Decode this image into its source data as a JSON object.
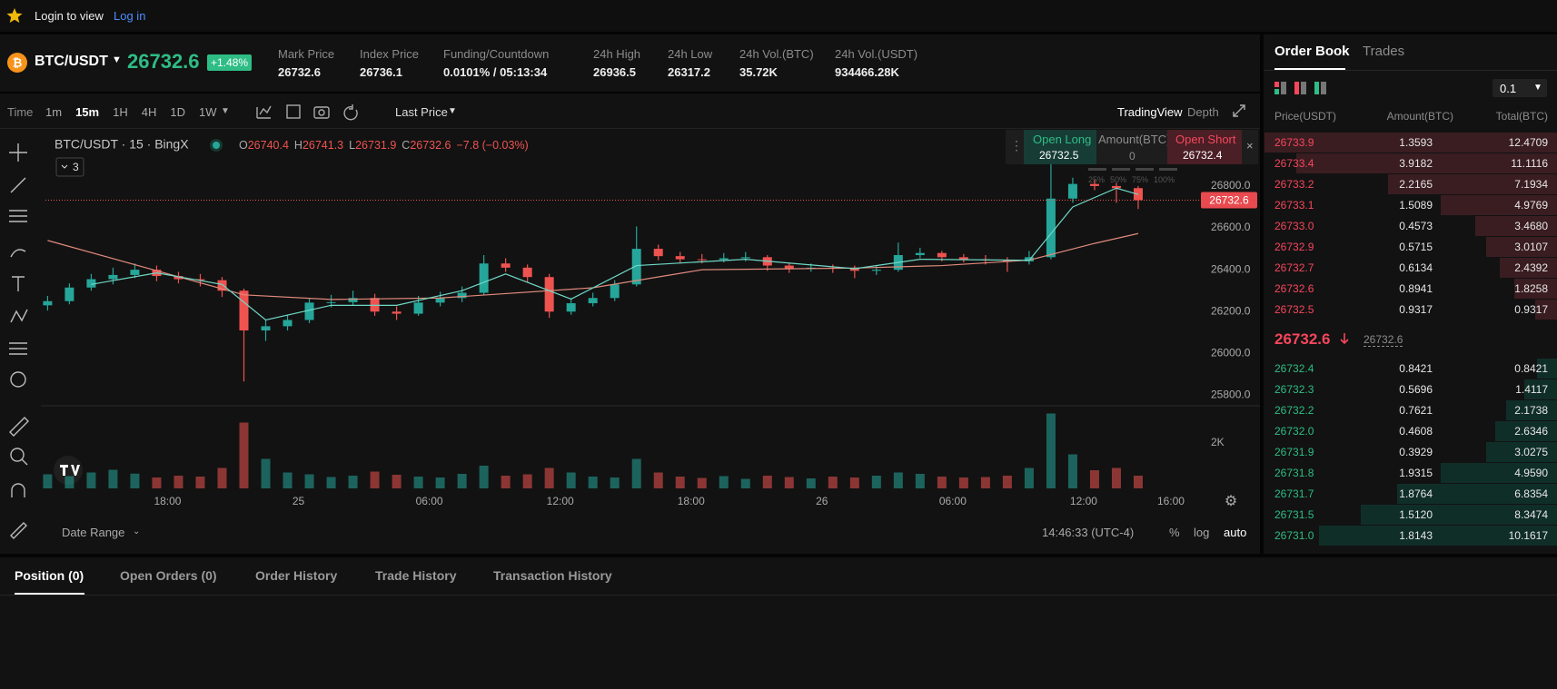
{
  "topbar": {
    "login_text": "Login to view",
    "login_link": "Log in"
  },
  "header": {
    "pair": "BTC/USDT",
    "price": "26732.6",
    "change": "+1.48%",
    "stats": [
      {
        "label": "Mark Price",
        "value": "26732.6"
      },
      {
        "label": "Index Price",
        "value": "26736.1"
      },
      {
        "label": "Funding/Countdown",
        "value": "0.0101% / 05:13:34"
      },
      {
        "label": "24h High",
        "value": "26936.5"
      },
      {
        "label": "24h Low",
        "value": "26317.2"
      },
      {
        "label": "24h Vol.(BTC)",
        "value": "35.72K"
      },
      {
        "label": "24h Vol.(USDT)",
        "value": "934466.28K"
      }
    ]
  },
  "toolbar": {
    "time_label": "Time",
    "intervals": [
      "1m",
      "15m",
      "1H",
      "4H",
      "1D",
      "1W"
    ],
    "active_interval": "15m",
    "price_type": "Last Price",
    "views": [
      "TradingView",
      "Depth"
    ],
    "active_view": "TradingView"
  },
  "chart_data": {
    "type": "candlestick",
    "symbol": "BTC/USDT · 15 · BingX",
    "legend": [
      {
        "label": "O",
        "value": "26740.4"
      },
      {
        "label": "H",
        "value": "26741.3"
      },
      {
        "label": "L",
        "value": "26731.9"
      },
      {
        "label": "C",
        "value": "26732.6"
      }
    ],
    "change": "−7.8 (−0.03%)",
    "indicator_count": "3",
    "up_color": "#26a69a",
    "down_color": "#ef5350",
    "x": [
      12.5,
      13.5,
      14.5,
      15.5,
      16.5,
      17.5,
      18.5,
      19.5,
      20.5,
      21.5,
      22.5,
      23.5,
      24.5,
      25.5,
      26.5,
      27.5,
      28.5,
      29.5,
      30.5,
      31.5,
      32.5,
      33.5,
      34.5,
      35.5,
      36.5,
      37.5,
      38.5,
      39.5,
      40.5,
      41.5,
      42.5,
      43.5,
      44.5,
      45.5,
      46.5,
      47.5,
      48.5,
      49.5,
      50.5,
      51.5,
      52.5,
      53.5,
      54.5,
      55.5,
      56.5,
      57.5,
      58.5,
      59.5,
      60.5,
      61.5,
      62.5
    ],
    "open": [
      26230,
      26250,
      26315,
      26355,
      26375,
      26400,
      26370,
      26355,
      26350,
      26300,
      26110,
      26130,
      26160,
      26243,
      26245,
      26265,
      26200,
      26190,
      26243,
      26265,
      26290,
      26430,
      26410,
      26365,
      26200,
      26240,
      26265,
      26330,
      26500,
      26465,
      26450,
      26448,
      26455,
      26460,
      26420,
      26405,
      26410,
      26405,
      26395,
      26400,
      26470,
      26480,
      26460,
      26450,
      26445,
      26440,
      26460,
      26740,
      26810,
      26800,
      26790
    ],
    "high": [
      26275,
      26335,
      26380,
      26410,
      26430,
      26420,
      26390,
      26380,
      26365,
      26310,
      26160,
      26185,
      26265,
      26280,
      26300,
      26285,
      26225,
      26275,
      26295,
      26320,
      26470,
      26455,
      26425,
      26380,
      26265,
      26290,
      26350,
      26607,
      26520,
      26485,
      26475,
      26480,
      26485,
      26470,
      26435,
      26430,
      26425,
      26420,
      26420,
      26530,
      26505,
      26490,
      26475,
      26470,
      26460,
      26490,
      26904,
      26840,
      26830,
      26815,
      26800
    ],
    "low": [
      26205,
      26235,
      26300,
      26330,
      26360,
      26345,
      26335,
      26320,
      26270,
      25866,
      26060,
      26110,
      26145,
      26220,
      26230,
      26180,
      26160,
      26180,
      26225,
      26245,
      26280,
      26390,
      26340,
      26170,
      26185,
      26225,
      26250,
      26320,
      26445,
      26430,
      26430,
      26435,
      26440,
      26395,
      26385,
      26390,
      26385,
      26360,
      26375,
      26390,
      26455,
      26440,
      26435,
      26425,
      26390,
      26425,
      26450,
      26720,
      26780,
      26720,
      26690
    ],
    "close": [
      26250,
      26315,
      26355,
      26375,
      26400,
      26370,
      26355,
      26350,
      26300,
      26110,
      26130,
      26160,
      26243,
      26245,
      26265,
      26200,
      26190,
      26243,
      26265,
      26290,
      26430,
      26410,
      26365,
      26200,
      26240,
      26265,
      26330,
      26500,
      26465,
      26450,
      26448,
      26455,
      26460,
      26420,
      26405,
      26410,
      26405,
      26395,
      26400,
      26470,
      26480,
      26460,
      26450,
      26445,
      26440,
      26460,
      26740,
      26810,
      26800,
      26790,
      26732.6
    ],
    "xlim": [
      12.4,
      65.5
    ],
    "xticks": [
      {
        "value": 18,
        "label": "18:00"
      },
      {
        "value": 24,
        "label": "25"
      },
      {
        "value": 30,
        "label": "06:00"
      },
      {
        "value": 36,
        "label": "12:00"
      },
      {
        "value": 42,
        "label": "18:00"
      },
      {
        "value": 48,
        "label": "26"
      },
      {
        "value": 54,
        "label": "06:00"
      },
      {
        "value": 60,
        "label": "12:00"
      },
      {
        "value": 64,
        "label": "16:00"
      }
    ],
    "ylim": [
      25750,
      27060
    ],
    "yticks": [
      {
        "value": 25800,
        "label": "25800.0"
      },
      {
        "value": 26000,
        "label": "26000.0"
      },
      {
        "value": 26200,
        "label": "26200.0"
      },
      {
        "value": 26400,
        "label": "26400.0"
      },
      {
        "value": 26600,
        "label": "26600.0"
      },
      {
        "value": 26800,
        "label": "26800.0"
      }
    ],
    "grid": false,
    "last_price": {
      "value": 26732.6,
      "label": "26732.6"
    },
    "ma_lines": [
      {
        "color": "#e08a7c",
        "x": [
          12.5,
          21.5,
          25.5,
          30.5,
          37.5,
          42.5,
          49.5,
          53.5,
          57.5,
          60.5,
          62.5
        ],
        "values": [
          26540,
          26280,
          26258,
          26265,
          26314,
          26400,
          26408,
          26420,
          26446,
          26526,
          26573
        ]
      },
      {
        "color": "#6fd8c6",
        "x": [
          14.5,
          17.5,
          20.5,
          22.5,
          25.5,
          28.5,
          31.5,
          33.5,
          36.5,
          39.5,
          44.5,
          49.5,
          52.5,
          57.5,
          59.5,
          61.5,
          62.5
        ],
        "values": [
          26330,
          26385,
          26330,
          26160,
          26230,
          26230,
          26300,
          26380,
          26260,
          26420,
          26450,
          26405,
          26450,
          26445,
          26700,
          26790,
          26760
        ]
      }
    ],
    "volume": {
      "values": [
        620,
        540,
        700,
        820,
        650,
        480,
        560,
        520,
        900,
        2900,
        1300,
        700,
        620,
        500,
        560,
        740,
        600,
        520,
        480,
        640,
        1000,
        560,
        620,
        900,
        700,
        520,
        480,
        1300,
        700,
        520,
        460,
        540,
        420,
        560,
        500,
        440,
        520,
        480,
        560,
        700,
        640,
        520,
        480,
        500,
        560,
        900,
        3300,
        1500,
        800,
        900,
        560
      ],
      "ylim": [
        0,
        3600
      ],
      "yticks": [
        {
          "value": 2000,
          "label": "2K"
        }
      ]
    }
  },
  "order_panel": {
    "long_label": "Open Long",
    "long_price": "26732.5",
    "amount_label": "Amount(BTC)",
    "amount": "0",
    "short_label": "Open Short",
    "short_price": "26732.4",
    "percents": [
      "25%",
      "50%",
      "75%",
      "100%"
    ]
  },
  "chart_footer": {
    "date_range": "Date Range",
    "clock": "14:46:33 (UTC-4)",
    "scale_options": [
      "%",
      "log",
      "auto"
    ]
  },
  "tabs": [
    "Position (0)",
    "Open Orders (0)",
    "Order History",
    "Trade History",
    "Transaction History"
  ],
  "order_book": {
    "tabs": [
      "Order Book",
      "Trades"
    ],
    "precision": "0.1",
    "columns": [
      "Price(USDT)",
      "Amount(BTC)",
      "Total(BTC)"
    ],
    "asks": [
      {
        "price": "26733.9",
        "amount": "1.3593",
        "total": 12.4709
      },
      {
        "price": "26733.4",
        "amount": "3.9182",
        "total": 11.1116
      },
      {
        "price": "26733.2",
        "amount": "2.2165",
        "total": 7.1934
      },
      {
        "price": "26733.1",
        "amount": "1.5089",
        "total": 4.9769
      },
      {
        "price": "26733.0",
        "amount": "0.4573",
        "total": {
          "value": 3.468,
          "label": "3.4680"
        }
      },
      {
        "price": "26732.9",
        "amount": "0.5715",
        "total": 3.0107
      },
      {
        "price": "26732.7",
        "amount": "0.6134",
        "total": 2.4392
      },
      {
        "price": "26732.6",
        "amount": "0.8941",
        "total": 1.8258
      },
      {
        "price": "26732.5",
        "amount": "0.9317",
        "total": 0.9317
      }
    ],
    "last_price": "26732.6",
    "mark_price": "26732.6",
    "bids": [
      {
        "price": "26732.4",
        "amount": "0.8421",
        "total": 0.8421
      },
      {
        "price": "26732.3",
        "amount": "0.5696",
        "total": 1.4117
      },
      {
        "price": "26732.2",
        "amount": "0.7621",
        "total": 2.1738
      },
      {
        "price": "26732.0",
        "amount": "0.4608",
        "total": 2.6346
      },
      {
        "price": "26731.9",
        "amount": "0.3929",
        "total": 3.0275
      },
      {
        "price": "26731.8",
        "amount": "1.9315",
        "total": {
          "value": 4.959,
          "label": "4.9590"
        }
      },
      {
        "price": "26731.7",
        "amount": "1.8764",
        "total": 6.8354
      },
      {
        "price": "26731.5",
        "amount": "1.5120",
        "total": 8.3474
      },
      {
        "price": "26731.0",
        "amount": "1.8143",
        "total": 10.1617
      }
    ]
  }
}
